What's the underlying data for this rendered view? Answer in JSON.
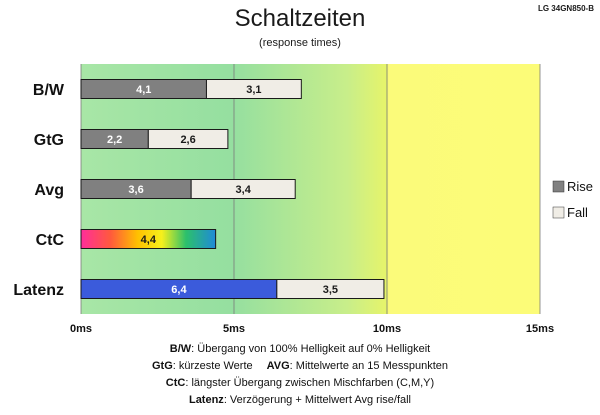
{
  "chart_data": {
    "type": "bar",
    "orientation": "horizontal",
    "stacked": true,
    "title": "Schaltzeiten",
    "subtitle": "(response times)",
    "model": "LG 34GN850-B",
    "categories": [
      "B/W",
      "GtG",
      "Avg",
      "CtC",
      "Latenz"
    ],
    "series": [
      {
        "name": "Rise",
        "color": "#808080",
        "values": [
          4.1,
          2.2,
          3.6,
          null,
          null
        ]
      },
      {
        "name": "Fall",
        "color": "#f0ede6",
        "values": [
          3.1,
          2.6,
          3.4,
          null,
          3.5
        ]
      }
    ],
    "special_bars": {
      "CtC": {
        "value": 4.4,
        "label": "4,4",
        "fill": "rainbow gradient"
      },
      "Latenz": {
        "value": 6.4,
        "label": "6,4",
        "color": "#3b5bdb"
      }
    },
    "value_labels": [
      [
        "4,1",
        "3,1"
      ],
      [
        "2,2",
        "2,6"
      ],
      [
        "3,6",
        "3,4"
      ],
      [
        "4,4"
      ],
      [
        "6,4",
        "3,5"
      ]
    ],
    "xlim": [
      0,
      15
    ],
    "xticks": [
      0,
      5,
      10,
      15
    ],
    "xtick_labels": [
      "0ms",
      "5ms",
      "10ms",
      "15ms"
    ],
    "grid": true,
    "background": "gradient green (fast) to yellow (slow)",
    "legend": {
      "placement": "right",
      "entries": [
        "Rise",
        "Fall"
      ]
    }
  },
  "footnotes": [
    {
      "key": "B/W",
      "text": ":  Übergang von 100% Helligkeit auf 0% Helligkeit"
    },
    {
      "key": "GtG",
      "text": ": kürzeste  Werte",
      "key2": "AVG",
      "text2": ": Mittelwerte  an 15 Messpunkten"
    },
    {
      "key": "CtC",
      "text": ": längster Übergang  zwischen Mischfarben (C,M,Y)"
    },
    {
      "key": "Latenz",
      "text": ": Verzögerung  + Mittelwert Avg rise/fall"
    }
  ]
}
